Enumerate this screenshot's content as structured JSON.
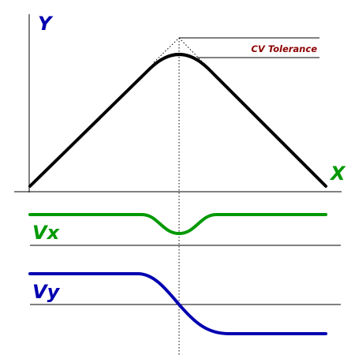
{
  "labels": {
    "y_axis": "Y",
    "x_axis": "X",
    "tolerance": "CV Tolerance",
    "vx": "Vx",
    "vy": "Vy"
  },
  "colors": {
    "path": "#000000",
    "tolerance": "#8b0000",
    "vx": "#009900",
    "vy": "#0000b0",
    "axis_labels": "#0000b0"
  }
}
